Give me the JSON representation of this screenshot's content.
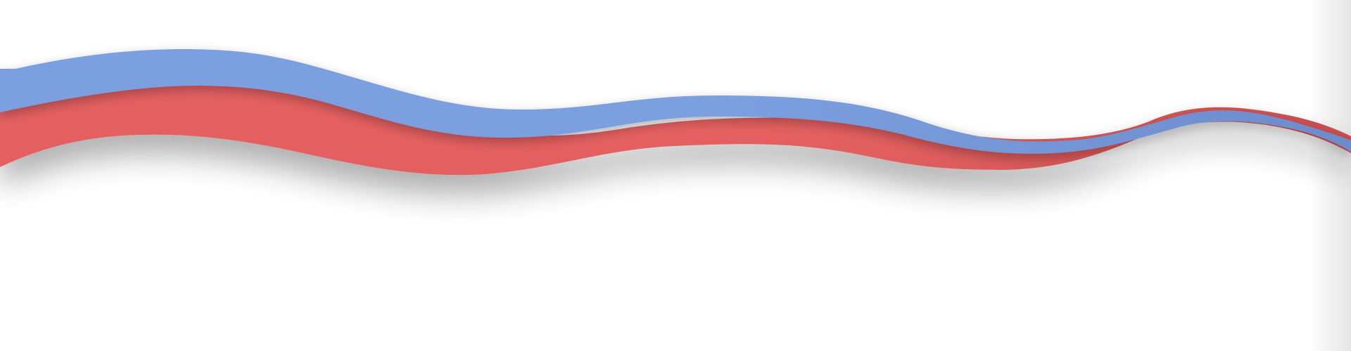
{
  "colors": {
    "background": "#ffffff",
    "blue_band": "#7b9fe0",
    "blue_band_dark": "#6d8ccc",
    "red_band": "#e46060",
    "red_band_dark": "#c94f4f",
    "shadow": "#000000"
  }
}
